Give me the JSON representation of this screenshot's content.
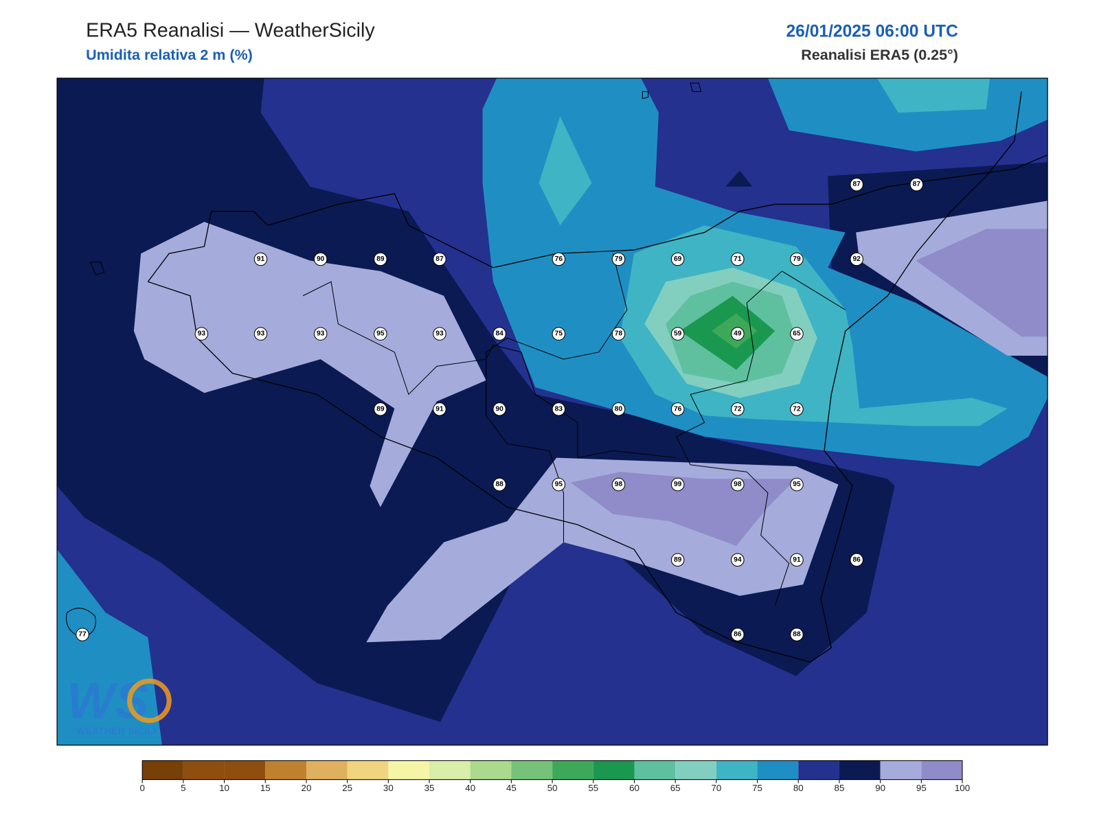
{
  "header": {
    "title": "ERA5 Reanalisi — WeatherSicily",
    "subtitle": "Umidita relativa 2 m (%)",
    "date": "26/01/2025 06:00 UTC",
    "source": "Reanalisi ERA5 (0.25°)"
  },
  "stations": {
    "values": [
      87,
      87,
      91,
      90,
      89,
      87,
      76,
      79,
      69,
      71,
      79,
      92,
      93,
      93,
      93,
      95,
      93,
      84,
      75,
      78,
      59,
      49,
      65,
      89,
      91,
      90,
      83,
      80,
      76,
      72,
      72,
      88,
      95,
      98,
      99,
      98,
      95,
      89,
      94,
      91,
      86,
      77,
      86,
      88
    ]
  },
  "colorbar": {
    "ticks": [
      0,
      5,
      10,
      15,
      20,
      25,
      30,
      35,
      40,
      45,
      50,
      55,
      60,
      65,
      70,
      75,
      80,
      85,
      90,
      95,
      100
    ],
    "colors": [
      "#774008",
      "#8e4e0f",
      "#8e4e0f",
      "#bf812d",
      "#dfb05f",
      "#f0d47f",
      "#f5f5a8",
      "#d9eea8",
      "#abd98e",
      "#76c27a",
      "#3ea85a",
      "#1a9850",
      "#5fc0a0",
      "#82cfc0",
      "#3fb4c4",
      "#1f8fc3",
      "#24318f",
      "#0b1a52",
      "#a5acdc",
      "#8f8cc9"
    ]
  },
  "logo": {
    "mark": "WS",
    "caption": "WEATHER SICILY"
  }
}
